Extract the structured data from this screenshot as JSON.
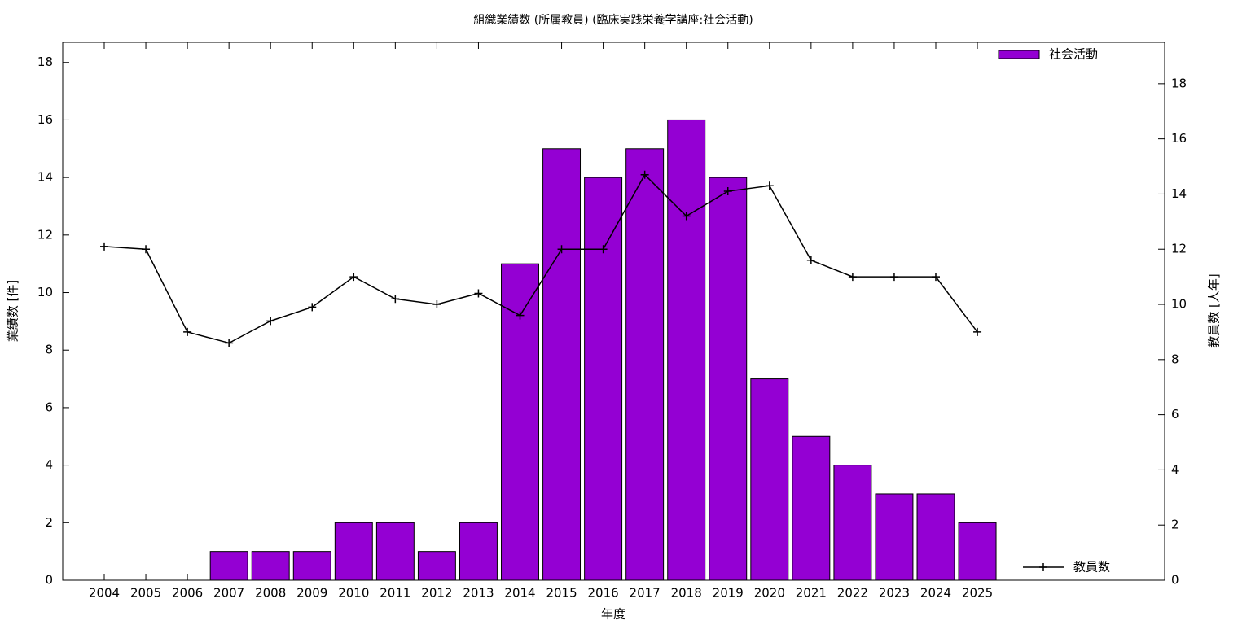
{
  "chart_data": {
    "type": "bar",
    "title": "組織業績数 (所属教員) (臨床実践栄養学講座:社会活動)",
    "x_label": "年度",
    "y_label": "業績数 [件]",
    "y2_label": "教員数 [人年]",
    "categories": [
      "2004",
      "2005",
      "2006",
      "2007",
      "2008",
      "2009",
      "2010",
      "2011",
      "2012",
      "2013",
      "2014",
      "2015",
      "2016",
      "2017",
      "2018",
      "2019",
      "2020",
      "2021",
      "2022",
      "2023",
      "2024",
      "2025"
    ],
    "series": [
      {
        "name": "社会活動",
        "type": "bar",
        "color": "#9400d3",
        "values": [
          0,
          0,
          0,
          1,
          1,
          1,
          2,
          2,
          1,
          2,
          11,
          15,
          14,
          15,
          16,
          14,
          7,
          5,
          4,
          3,
          3,
          2
        ]
      },
      {
        "name": "教員数",
        "type": "line",
        "color": "#000000",
        "axis": "y2",
        "values": [
          12.1,
          12.0,
          9,
          8.6,
          9.4,
          9.9,
          11.0,
          10.2,
          10.0,
          10.4,
          9.6,
          12.0,
          12.0,
          14.7,
          13.2,
          14.1,
          14.3,
          11.6,
          11.0,
          11.0,
          11.0,
          9
        ]
      }
    ],
    "ylim": [
      0,
      18.7
    ],
    "yticks": [
      0,
      2,
      4,
      6,
      8,
      10,
      12,
      14,
      16,
      18
    ],
    "y2lim": [
      0,
      19.5
    ],
    "y2ticks": [
      0,
      2,
      4,
      6,
      8,
      10,
      12,
      14,
      16,
      18
    ],
    "grid": false
  }
}
